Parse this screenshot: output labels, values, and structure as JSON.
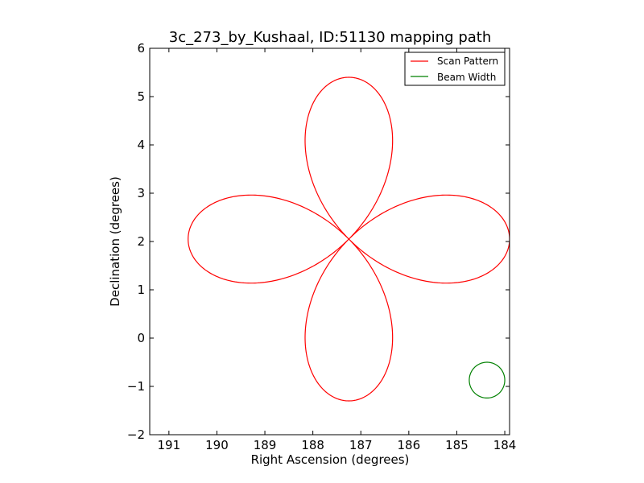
{
  "chart_data": {
    "type": "line",
    "title": "3c_273_by_Kushaal, ID:51130 mapping path",
    "xlabel": "Right Ascension (degrees)",
    "ylabel": "Declination (degrees)",
    "xlim": [
      191.4,
      183.9
    ],
    "ylim": [
      -2,
      6
    ],
    "x_ticks": [
      191,
      190,
      189,
      188,
      187,
      186,
      185,
      184
    ],
    "y_ticks": [
      -2,
      -1,
      0,
      1,
      2,
      3,
      4,
      5,
      6
    ],
    "x_tick_labels": [
      "191",
      "190",
      "189",
      "188",
      "187",
      "186",
      "185",
      "184"
    ],
    "y_tick_labels": [
      "−2",
      "−1",
      "0",
      "1",
      "2",
      "3",
      "4",
      "5",
      "6"
    ],
    "grid": false,
    "legend_position": "top-right",
    "series": [
      {
        "name": "Scan Pattern",
        "color": "#ff0000",
        "shape": "four-leaf rose",
        "center": [
          187.25,
          2.05
        ],
        "petal_length": 3.35,
        "x_scale": 1.0,
        "y_scale": 1.0
      },
      {
        "name": "Beam Width",
        "color": "#008000",
        "shape": "circle",
        "center": [
          184.37,
          -0.87
        ],
        "radius": 0.37
      }
    ]
  }
}
